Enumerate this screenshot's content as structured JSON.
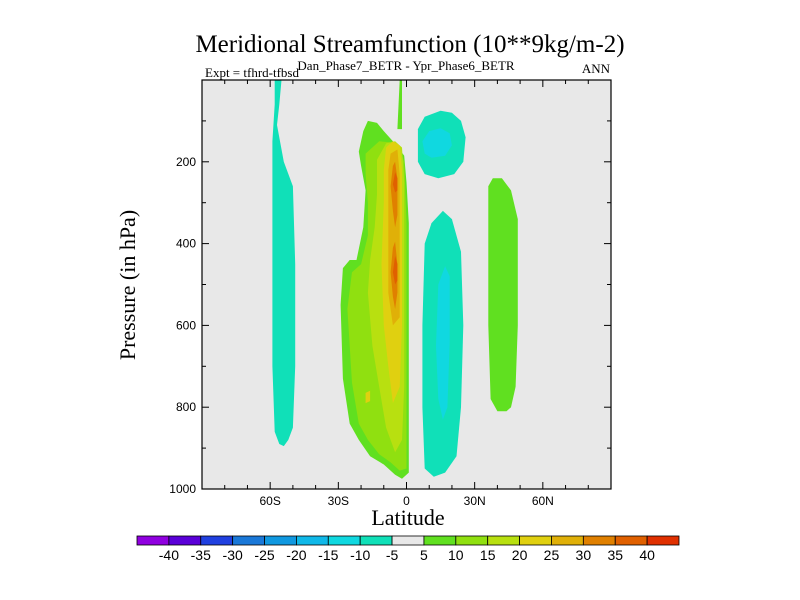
{
  "chart_data": {
    "type": "contour",
    "title": "Meridional Streamfunction (10**9kg/m-2)",
    "subtitle": "Dan_Phase7_BETR - Ypr_Phase6_BETR",
    "expt_label": "Expt = tfhrd-tfbsd",
    "season": "ANN",
    "xlabel": "Latitude",
    "ylabel": "Pressure (in hPa)",
    "xlim": [
      -90,
      90
    ],
    "ylim": [
      1000,
      0
    ],
    "x_ticks": [
      {
        "value": -60,
        "label": "60S"
      },
      {
        "value": -30,
        "label": "30S"
      },
      {
        "value": 0,
        "label": "0"
      },
      {
        "value": 30,
        "label": "30N"
      },
      {
        "value": 60,
        "label": "60N"
      }
    ],
    "y_ticks": [
      {
        "value": 200,
        "label": "200"
      },
      {
        "value": 400,
        "label": "400"
      },
      {
        "value": 600,
        "label": "600"
      },
      {
        "value": 800,
        "label": "800"
      },
      {
        "value": 1000,
        "label": "1000"
      }
    ],
    "background_color": "#e8e8e8",
    "colorbar": {
      "levels": [
        -40,
        -35,
        -30,
        -25,
        -20,
        -15,
        -10,
        -5,
        5,
        10,
        15,
        20,
        25,
        30,
        35,
        40
      ],
      "colors": [
        "#9000e0",
        "#5a00d8",
        "#2040e0",
        "#1a78d8",
        "#1098e0",
        "#10b8e8",
        "#10d8e0",
        "#10e0b8",
        "#e8e8e8",
        "#60e020",
        "#90e010",
        "#b8e010",
        "#e0d010",
        "#e0b008",
        "#e08000",
        "#e06000",
        "#e03000"
      ]
    },
    "contour_regions": [
      {
        "name": "sh-negative-column",
        "level": -7,
        "color": "#10e0b8",
        "points": [
          [
            -58,
            0
          ],
          [
            -55,
            0
          ],
          [
            -56,
            60
          ],
          [
            -57,
            110
          ],
          [
            -54,
            200
          ],
          [
            -50,
            260
          ],
          [
            -49,
            450
          ],
          [
            -49,
            700
          ],
          [
            -50,
            850
          ],
          [
            -52,
            880
          ],
          [
            -54,
            895
          ],
          [
            -56,
            890
          ],
          [
            -58,
            860
          ],
          [
            -59,
            700
          ],
          [
            -59,
            400
          ],
          [
            -59,
            150
          ],
          [
            -58,
            60
          ]
        ]
      },
      {
        "name": "equatorial-positive-cell",
        "level": 5,
        "color": "#60e020",
        "points": [
          [
            -21,
            175
          ],
          [
            -19,
            125
          ],
          [
            -17,
            100
          ],
          [
            -13,
            105
          ],
          [
            -10,
            125
          ],
          [
            -6,
            150
          ],
          [
            -3,
            170
          ],
          [
            -1,
            185
          ],
          [
            0,
            250
          ],
          [
            1,
            350
          ],
          [
            1,
            500
          ],
          [
            1,
            700
          ],
          [
            1,
            900
          ],
          [
            1,
            960
          ],
          [
            -2,
            975
          ],
          [
            -5,
            965
          ],
          [
            -10,
            940
          ],
          [
            -16,
            920
          ],
          [
            -21,
            880
          ],
          [
            -25,
            840
          ],
          [
            -28,
            730
          ],
          [
            -29,
            550
          ],
          [
            -28,
            460
          ],
          [
            -25,
            440
          ],
          [
            -22,
            440
          ],
          [
            -19,
            360
          ],
          [
            -18,
            270
          ],
          [
            -20,
            210
          ]
        ]
      },
      {
        "name": "equatorial-positive-cell-top",
        "level": 5,
        "color": "#60e020",
        "points": [
          [
            -3,
            0
          ],
          [
            -2,
            0
          ],
          [
            -2,
            120
          ],
          [
            -4,
            120
          ]
        ]
      },
      {
        "name": "equatorial-level-10",
        "level": 10,
        "color": "#90e010",
        "points": [
          [
            -18,
            180
          ],
          [
            -12,
            150
          ],
          [
            -7,
            152
          ],
          [
            -3,
            168
          ],
          [
            -1,
            200
          ],
          [
            0,
            350
          ],
          [
            0,
            600
          ],
          [
            0,
            800
          ],
          [
            0,
            950
          ],
          [
            -3,
            955
          ],
          [
            -7,
            935
          ],
          [
            -12,
            915
          ],
          [
            -17,
            880
          ],
          [
            -21,
            840
          ],
          [
            -24,
            740
          ],
          [
            -26,
            560
          ],
          [
            -24,
            470
          ],
          [
            -20,
            450
          ],
          [
            -17,
            380
          ],
          [
            -17,
            300
          ],
          [
            -18,
            230
          ]
        ]
      },
      {
        "name": "equatorial-level-15",
        "level": 15,
        "color": "#b8e010",
        "points": [
          [
            -13,
            195
          ],
          [
            -9,
            155
          ],
          [
            -5,
            150
          ],
          [
            -2,
            165
          ],
          [
            -1,
            250
          ],
          [
            -1,
            500
          ],
          [
            -1,
            750
          ],
          [
            -2,
            880
          ],
          [
            -5,
            910
          ],
          [
            -9,
            850
          ],
          [
            -12,
            750
          ],
          [
            -15,
            650
          ],
          [
            -17,
            520
          ],
          [
            -16,
            440
          ],
          [
            -14,
            360
          ],
          [
            -13,
            280
          ]
        ]
      },
      {
        "name": "equatorial-level-20",
        "level": 20,
        "color": "#e0d010",
        "points": [
          [
            -9,
            165
          ],
          [
            -6,
            150
          ],
          [
            -3,
            160
          ],
          [
            -2,
            220
          ],
          [
            -2,
            400
          ],
          [
            -2,
            600
          ],
          [
            -3,
            750
          ],
          [
            -6,
            790
          ],
          [
            -8,
            700
          ],
          [
            -10,
            600
          ],
          [
            -11,
            450
          ],
          [
            -10,
            300
          ],
          [
            -10,
            220
          ]
        ]
      },
      {
        "name": "equatorial-level-25",
        "level": 25,
        "color": "#e0b008",
        "points": [
          [
            -7,
            180
          ],
          [
            -4,
            170
          ],
          [
            -3,
            230
          ],
          [
            -3,
            400
          ],
          [
            -3,
            580
          ],
          [
            -6,
            600
          ],
          [
            -8,
            520
          ],
          [
            -8,
            400
          ],
          [
            -8,
            280
          ],
          [
            -8,
            220
          ]
        ]
      },
      {
        "name": "equatorial-level-30-upper",
        "level": 30,
        "color": "#e08000",
        "points": [
          [
            -6,
            210
          ],
          [
            -5,
            200
          ],
          [
            -4,
            240
          ],
          [
            -4,
            330
          ],
          [
            -5,
            360
          ],
          [
            -6,
            320
          ],
          [
            -7,
            260
          ]
        ]
      },
      {
        "name": "equatorial-level-30-lower",
        "level": 30,
        "color": "#e08000",
        "points": [
          [
            -6,
            410
          ],
          [
            -5,
            395
          ],
          [
            -4,
            450
          ],
          [
            -4,
            520
          ],
          [
            -5,
            560
          ],
          [
            -6,
            530
          ],
          [
            -7,
            470
          ]
        ]
      },
      {
        "name": "equatorial-level-35-upper",
        "level": 35,
        "color": "#e06000",
        "points": [
          [
            -5,
            225
          ],
          [
            -4,
            240
          ],
          [
            -4,
            270
          ],
          [
            -5,
            275
          ],
          [
            -6,
            255
          ]
        ]
      },
      {
        "name": "equatorial-level-35-lower",
        "level": 35,
        "color": "#e06000",
        "points": [
          [
            -5,
            430
          ],
          [
            -4,
            450
          ],
          [
            -4,
            490
          ],
          [
            -5,
            500
          ],
          [
            -6,
            470
          ]
        ]
      },
      {
        "name": "equatorial-local-max-near-surface",
        "level": 20,
        "color": "#e0d010",
        "points": [
          [
            -18,
            765
          ],
          [
            -16,
            760
          ],
          [
            -16,
            785
          ],
          [
            -18,
            790
          ]
        ]
      },
      {
        "name": "nh-upper-negative-cell",
        "level": -7,
        "color": "#10e0b8",
        "points": [
          [
            5,
            120
          ],
          [
            8,
            90
          ],
          [
            15,
            75
          ],
          [
            20,
            80
          ],
          [
            24,
            100
          ],
          [
            26,
            140
          ],
          [
            25,
            200
          ],
          [
            21,
            230
          ],
          [
            14,
            240
          ],
          [
            8,
            230
          ],
          [
            5,
            200
          ]
        ]
      },
      {
        "name": "nh-upper-level-10",
        "level": -10,
        "color": "#10d8e0",
        "points": [
          [
            7,
            150
          ],
          [
            10,
            125
          ],
          [
            15,
            118
          ],
          [
            19,
            130
          ],
          [
            20,
            160
          ],
          [
            17,
            185
          ],
          [
            11,
            190
          ],
          [
            8,
            180
          ]
        ]
      },
      {
        "name": "nh-lower-negative-column",
        "level": -7,
        "color": "#10e0b8",
        "points": [
          [
            8,
            400
          ],
          [
            11,
            350
          ],
          [
            16,
            320
          ],
          [
            20,
            340
          ],
          [
            24,
            420
          ],
          [
            25,
            600
          ],
          [
            24,
            800
          ],
          [
            22,
            920
          ],
          [
            17,
            960
          ],
          [
            12,
            970
          ],
          [
            8,
            950
          ],
          [
            7,
            800
          ],
          [
            7,
            600
          ]
        ]
      },
      {
        "name": "nh-lower-level-10",
        "level": -10,
        "color": "#10d8e0",
        "points": [
          [
            14,
            500
          ],
          [
            17,
            455
          ],
          [
            19,
            480
          ],
          [
            19,
            640
          ],
          [
            18,
            800
          ],
          [
            16,
            830
          ],
          [
            14,
            780
          ],
          [
            13,
            650
          ]
        ]
      },
      {
        "name": "nh-midlatitude-positive",
        "level": 5,
        "color": "#60e020",
        "points": [
          [
            36,
            260
          ],
          [
            38,
            240
          ],
          [
            42,
            240
          ],
          [
            46,
            270
          ],
          [
            49,
            340
          ],
          [
            49,
            600
          ],
          [
            48,
            750
          ],
          [
            46,
            800
          ],
          [
            44,
            810
          ],
          [
            40,
            810
          ],
          [
            37,
            780
          ],
          [
            36,
            600
          ],
          [
            36,
            400
          ]
        ]
      }
    ]
  }
}
